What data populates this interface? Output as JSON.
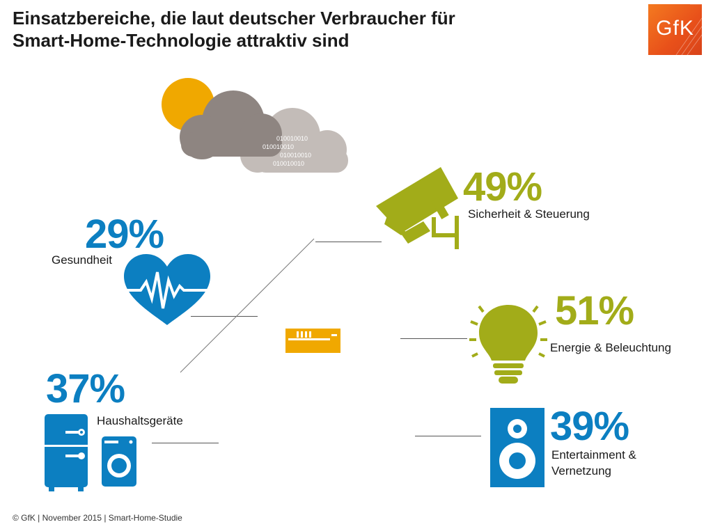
{
  "title_line1": "Einsatzbereiche, die laut deutscher Verbraucher für",
  "title_line2": "Smart-Home-Technologie attraktiv sind",
  "logo": {
    "text": "GfK",
    "icon": "gfk-logo"
  },
  "cloud": {
    "binary": [
      "010010010",
      "010010010",
      "010010010",
      "010010010"
    ],
    "icon": "sun-cloud-data-icon"
  },
  "box_icon": "smart-hub-icon",
  "categories": [
    {
      "id": "sicherheit",
      "percent": "49%",
      "value": 49,
      "label": "Sicherheit & Steuerung",
      "icon": "security-camera-icon",
      "color": "#a2ac19"
    },
    {
      "id": "energie",
      "percent": "51%",
      "value": 51,
      "label": "Energie & Beleuchtung",
      "icon": "light-bulb-icon",
      "color": "#a2ac19"
    },
    {
      "id": "entertainment",
      "percent": "39%",
      "value": 39,
      "label_line1": "Entertainment &",
      "label_line2": "Vernetzung",
      "icon": "speaker-icon",
      "color": "#0c7fc1"
    },
    {
      "id": "gesundheit",
      "percent": "29%",
      "value": 29,
      "label": "Gesundheit",
      "icon": "heart-pulse-icon",
      "color": "#0c7fc1"
    },
    {
      "id": "haushalt",
      "percent": "37%",
      "value": 37,
      "label": "Haushaltsgeräte",
      "icon": "appliances-icon",
      "color": "#0c7fc1"
    }
  ],
  "colors": {
    "blue": "#0c7fc1",
    "olive": "#a2ac19",
    "orange": "#f0a800",
    "gfk_orange": "#e8501a"
  },
  "footer": "© GfK | November 2015 | Smart-Home-Studie"
}
